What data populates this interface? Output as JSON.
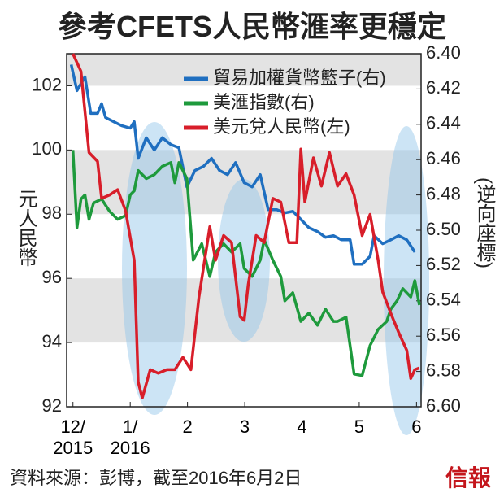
{
  "chart_data": {
    "type": "line",
    "title": "參考CFETS人民幣滙率更穩定",
    "y_label": "元人民幣",
    "y2_label": "(逆向座標)",
    "source": "資料來源：彭博，截至2016年6月2日",
    "logo": "信報",
    "xlim": [
      -0.11,
      6.08
    ],
    "xticks": [
      {
        "value": 0,
        "label": "12/\n2015"
      },
      {
        "value": 1,
        "label": "1/\n2016"
      },
      2,
      3,
      4,
      5,
      6
    ],
    "ylim": [
      92,
      103
    ],
    "yticks": [
      92,
      94,
      96,
      98,
      100,
      102
    ],
    "y2lim": [
      6.6,
      6.4
    ],
    "y2ticks": [
      {
        "value": 6.4,
        "label": "6.40"
      },
      {
        "value": 6.42,
        "label": "6.42"
      },
      {
        "value": 6.44,
        "label": "6.44"
      },
      {
        "value": 6.46,
        "label": "6.46"
      },
      {
        "value": 6.48,
        "label": "6.48"
      },
      {
        "value": 6.5,
        "label": "6.50"
      },
      {
        "value": 6.52,
        "label": "6.52"
      },
      {
        "value": 6.54,
        "label": "6.54"
      },
      {
        "value": 6.56,
        "label": "6.56"
      },
      {
        "value": 6.58,
        "label": "6.58"
      },
      {
        "value": 6.6,
        "label": "6.60"
      }
    ],
    "band_color": "#e3e3e3",
    "series": [
      {
        "name": "貿易加權貨幣籃子(右)",
        "color": "#1f6fc0",
        "x": [
          -0.03,
          0.07,
          0.21,
          0.31,
          0.43,
          0.5,
          0.57,
          0.71,
          0.85,
          1.0,
          1.07,
          1.14,
          1.28,
          1.42,
          1.56,
          1.71,
          1.85,
          1.99,
          2.13,
          2.28,
          2.42,
          2.56,
          2.7,
          2.84,
          2.99,
          3.13,
          3.27,
          3.41,
          3.56,
          3.7,
          3.84,
          3.98,
          4.12,
          4.27,
          4.41,
          4.55,
          4.69,
          4.84,
          4.91,
          5.05,
          5.19,
          5.26,
          5.41,
          5.55,
          5.69,
          5.83,
          5.97
        ],
        "values": [
          102.66,
          101.85,
          102.28,
          101.14,
          101.14,
          101.44,
          101.01,
          100.88,
          100.76,
          100.68,
          100.88,
          99.74,
          100.38,
          100.0,
          100.38,
          100.17,
          100.07,
          98.85,
          99.36,
          99.49,
          99.74,
          99.36,
          99.23,
          99.61,
          98.98,
          98.85,
          99.23,
          98.14,
          98.14,
          98.04,
          98.09,
          97.84,
          97.58,
          97.46,
          97.28,
          97.33,
          97.2,
          97.2,
          96.44,
          96.44,
          96.69,
          97.33,
          97.08,
          97.2,
          97.33,
          97.2,
          96.82
        ]
      },
      {
        "name": "美滙指數(右)",
        "color": "#1e9a3c",
        "x": [
          0,
          0.07,
          0.14,
          0.21,
          0.28,
          0.36,
          0.5,
          0.64,
          0.78,
          0.92,
          1.0,
          1.07,
          1.14,
          1.28,
          1.42,
          1.56,
          1.71,
          1.78,
          1.85,
          1.99,
          2.1,
          2.25,
          2.39,
          2.49,
          2.63,
          2.77,
          2.92,
          2.99,
          3.13,
          3.27,
          3.34,
          3.49,
          3.63,
          3.7,
          3.84,
          3.98,
          4.12,
          4.27,
          4.41,
          4.55,
          4.62,
          4.77,
          4.91,
          5.05,
          5.19,
          5.33,
          5.48,
          5.55,
          5.66,
          5.76,
          5.9,
          5.97,
          6.05
        ],
        "values": [
          100.0,
          97.58,
          98.47,
          98.6,
          97.84,
          98.35,
          98.47,
          98.09,
          97.84,
          97.96,
          98.6,
          98.73,
          99.36,
          99.11,
          99.23,
          99.49,
          99.61,
          98.98,
          99.61,
          99.11,
          96.57,
          97.08,
          96.06,
          96.82,
          97.08,
          96.82,
          97.08,
          96.31,
          96.06,
          96.57,
          97.2,
          96.57,
          96.06,
          95.3,
          95.55,
          94.66,
          94.92,
          94.54,
          95.04,
          94.66,
          94.66,
          94.79,
          93.02,
          92.97,
          93.91,
          94.41,
          94.66,
          95.04,
          95.3,
          95.68,
          95.42,
          95.93,
          95.17
        ]
      },
      {
        "name": "美元兌人民幣(左)",
        "color": "#d81e2a",
        "axis": "y2",
        "x": [
          0,
          0.14,
          0.28,
          0.43,
          0.5,
          0.64,
          0.78,
          0.92,
          1.07,
          1.14,
          1.21,
          1.35,
          1.49,
          1.64,
          1.78,
          1.92,
          2.06,
          2.2,
          2.39,
          2.49,
          2.63,
          2.77,
          2.92,
          2.99,
          3.06,
          3.2,
          3.34,
          3.49,
          3.63,
          3.77,
          3.91,
          3.98,
          4.05,
          4.2,
          4.34,
          4.48,
          4.62,
          4.77,
          4.91,
          5.05,
          5.19,
          5.33,
          5.41,
          5.55,
          5.69,
          5.83,
          5.9,
          5.97,
          6.05
        ],
        "values": [
          6.4,
          6.41,
          6.456,
          6.461,
          6.482,
          6.48,
          6.477,
          6.489,
          6.517,
          6.586,
          6.595,
          6.579,
          6.581,
          6.579,
          6.579,
          6.572,
          6.579,
          6.538,
          6.498,
          6.517,
          6.503,
          6.507,
          6.549,
          6.551,
          6.531,
          6.503,
          6.507,
          6.482,
          6.484,
          6.507,
          6.507,
          6.454,
          6.484,
          6.459,
          6.475,
          6.456,
          6.475,
          6.468,
          6.48,
          6.503,
          6.491,
          6.517,
          6.535,
          6.547,
          6.558,
          6.568,
          6.584,
          6.579,
          6.578
        ]
      }
    ]
  }
}
